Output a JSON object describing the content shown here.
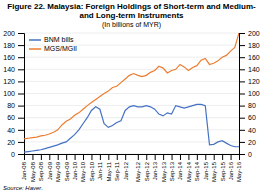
{
  "chart_data": {
    "type": "line",
    "title": "Figure 22. Malaysia: Foreign Holdings of Short-term and Medium- and Long-term Instruments",
    "subtitle": "(In billions of MYR)",
    "annotations": [
      "Source: Haver."
    ],
    "categories": [
      "Jan-08",
      null,
      "May-08",
      null,
      "Sep-08",
      null,
      "Jan-09",
      null,
      "May-09",
      null,
      "Sep-09",
      null,
      "Jan-10",
      null,
      "May-10",
      null,
      "Sep-10",
      null,
      "Jan-11",
      null,
      "May-11",
      null,
      "Sep-11",
      null,
      "Jan-12",
      null,
      null,
      "May-12",
      null,
      "Sep-12",
      null,
      "Jan-13",
      null,
      "May-13",
      null,
      "Sep-13",
      null,
      "Jan-14",
      null,
      "May-14",
      null,
      "Sep-14",
      null,
      "Jan-15",
      null,
      "May-15",
      null,
      "Sep-15",
      null,
      "Jan-16",
      null,
      "May-16"
    ],
    "series": [
      {
        "name": "BNM bills",
        "color": "#4472C4",
        "values": [
          3,
          4,
          5,
          6,
          7,
          9,
          11,
          13,
          15,
          18,
          20,
          26,
          32,
          40,
          50,
          60,
          72,
          78,
          74,
          50,
          44,
          47,
          52,
          55,
          72,
          78,
          80,
          78,
          78,
          80,
          78,
          74,
          66,
          63,
          68,
          66,
          80,
          78,
          76,
          78,
          80,
          82,
          82,
          80,
          15,
          16,
          20,
          22,
          18,
          14,
          12,
          12
        ]
      },
      {
        "name": "MGS/MGII",
        "color": "#ED7D31",
        "values": [
          25,
          26,
          27,
          28,
          30,
          31,
          33,
          36,
          40,
          48,
          54,
          58,
          64,
          68,
          74,
          80,
          85,
          90,
          95,
          100,
          104,
          110,
          112,
          118,
          124,
          130,
          133,
          130,
          128,
          130,
          135,
          138,
          145,
          142,
          134,
          138,
          140,
          148,
          144,
          138,
          143,
          146,
          155,
          158,
          148,
          150,
          154,
          160,
          163,
          170,
          176,
          200
        ]
      }
    ],
    "ylim": [
      0,
      200
    ],
    "yticks": [
      0,
      20,
      40,
      60,
      80,
      100,
      120,
      140,
      160,
      180,
      200
    ],
    "y2lim": [
      0,
      200
    ],
    "y2ticks": [
      0,
      20,
      40,
      60,
      80,
      100,
      120,
      140,
      160,
      180,
      200
    ],
    "grid": true,
    "legend": "upper-left"
  }
}
